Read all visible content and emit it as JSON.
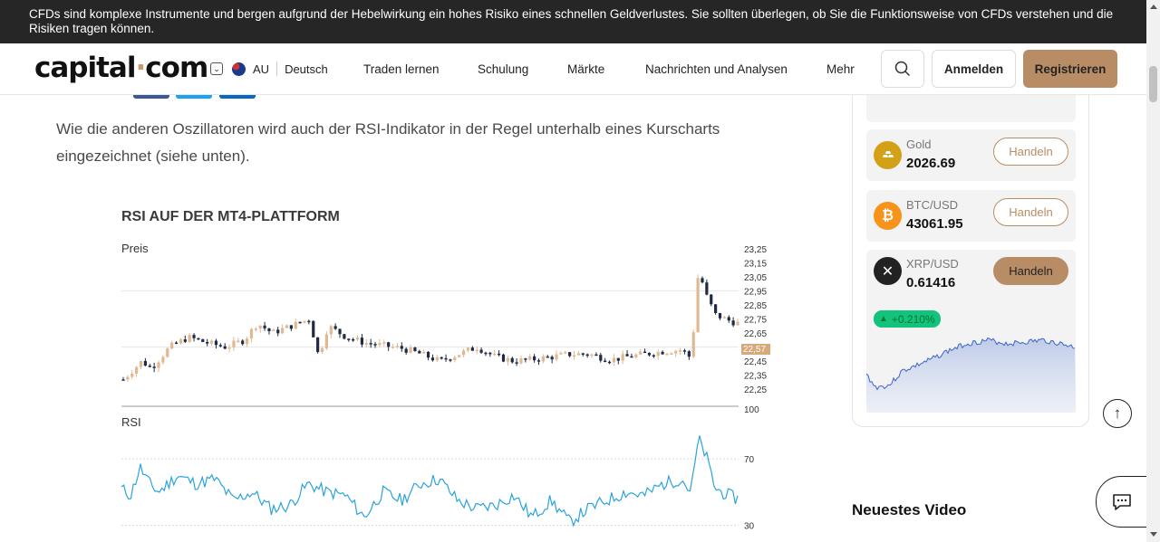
{
  "risk_warning": "CFDs sind komplexe Instrumente und bergen aufgrund der Hebelwirkung ein hohes Risiko eines schnellen Geldverlustes. Sie sollten überlegen, ob Sie die Funktionsweise von CFDs verstehen und die Risiken tragen können.",
  "header": {
    "logo_text": "capital",
    "logo_dot": "·",
    "logo_suffix": "com",
    "region": "AU",
    "language": "Deutsch",
    "nav": [
      "Traden lernen",
      "Schulung",
      "Märkte",
      "Nachrichten und Analysen",
      "Mehr"
    ],
    "login_label": "Anmelden",
    "register_label": "Registrieren"
  },
  "article": {
    "paragraph": "Wie die anderen Oszillatoren wird auch der RSI-Indikator in der Regel unterhalb eines Kurscharts eingezeichnet (siehe unten)."
  },
  "chart_data": [
    {
      "type": "candlestick",
      "title": "RSI AUF DER MT4-PLATTFORM",
      "panel_label": "Preis",
      "y_ticks": [
        "23,25",
        "23,15",
        "23,05",
        "22,95",
        "22,85",
        "22,75",
        "22,65",
        "22,45",
        "22,35",
        "22,25"
      ],
      "current_price_label": "22,57",
      "ylim": [
        22.2,
        23.3
      ],
      "grid": true
    },
    {
      "type": "line",
      "panel_label": "RSI",
      "y_ticks": [
        "100",
        "70",
        "30"
      ],
      "ylim": [
        20,
        100
      ],
      "levels": [
        70,
        30
      ]
    }
  ],
  "sidebar": {
    "assets": [
      {
        "name": "Gold",
        "price": "2026.69",
        "icon": "gold-bars-icon",
        "icon_color": "#d4a017",
        "button": "Handeln"
      },
      {
        "name": "BTC/USD",
        "price": "43061.95",
        "icon": "bitcoin-icon",
        "icon_glyph": "₿",
        "icon_color": "#f7931a",
        "button": "Handeln"
      },
      {
        "name": "XRP/USD",
        "price": "0.61416",
        "icon": "xrp-icon",
        "icon_glyph": "✕",
        "icon_color": "#222222",
        "button": "Handeln"
      }
    ],
    "xrp_change": "+0.210%",
    "video_heading": "Neuestes Video"
  },
  "colors": {
    "brand": "#b88d66",
    "banner": "#262626",
    "bull": "#e0b892",
    "bear": "#1f2a44",
    "rsi_line": "#2aa3dc",
    "positive": "#13c27b"
  }
}
